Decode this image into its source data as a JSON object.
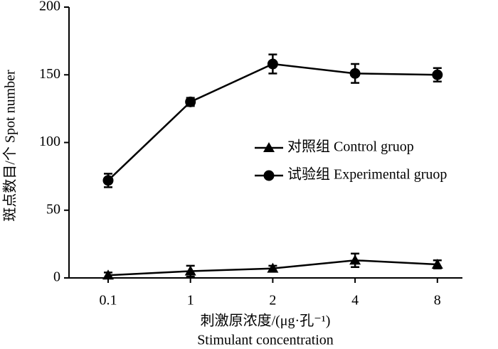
{
  "chart_data": {
    "type": "line",
    "x_label": [
      "刺激原浓度/(μg·孔⁻¹)",
      "Stimulant concentration"
    ],
    "y_label": "斑点数目/个 Spot number",
    "categories": [
      "0.1",
      "1",
      "2",
      "4",
      "8"
    ],
    "series": [
      {
        "name": "对照组 Control gruop",
        "color": "#000000",
        "marker": "triangle",
        "values": [
          2,
          5,
          7,
          13,
          10
        ],
        "errors": [
          2,
          4,
          2,
          5,
          3
        ]
      },
      {
        "name": "试验组 Experimental gruop",
        "color": "#000000",
        "marker": "circle",
        "values": [
          72,
          130,
          158,
          151,
          150
        ],
        "errors": [
          5,
          3,
          7,
          7,
          5
        ]
      }
    ],
    "ylim": [
      0,
      200
    ],
    "yticks": [
      0,
      50,
      100,
      150,
      200
    ],
    "grid": false
  }
}
